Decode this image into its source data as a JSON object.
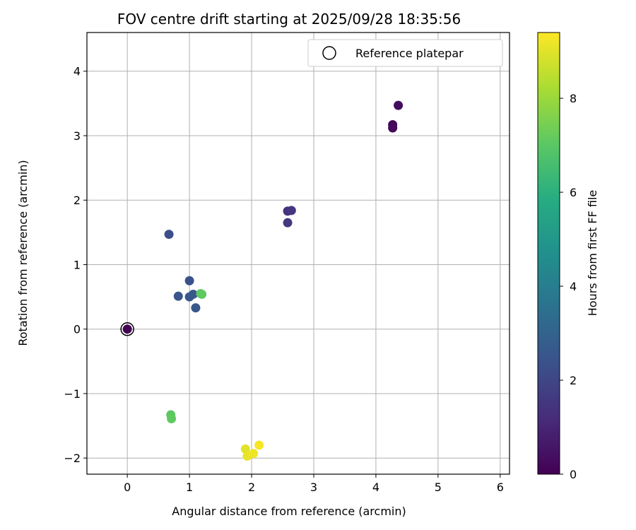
{
  "chart_data": {
    "type": "scatter",
    "title": "FOV centre drift starting at 2025/09/28 18:35:56",
    "xlabel": "Angular distance from reference (arcmin)",
    "ylabel": "Rotation from reference (arcmin)",
    "xlim": [
      -0.65,
      6.15
    ],
    "ylim": [
      -2.25,
      4.6
    ],
    "xticks": [
      0,
      1,
      2,
      3,
      4,
      5,
      6
    ],
    "yticks": [
      -2,
      -1,
      0,
      1,
      2,
      3,
      4
    ],
    "xtick_labels": [
      "0",
      "1",
      "2",
      "3",
      "4",
      "5",
      "6"
    ],
    "ytick_labels": [
      "−2",
      "−1",
      "0",
      "1",
      "2",
      "3",
      "4"
    ],
    "grid": true,
    "legend": {
      "position": "top-right",
      "entries": [
        "Reference platepar"
      ]
    },
    "colorbar": {
      "label": "Hours from first FF file",
      "range": [
        0,
        9.4
      ],
      "ticks": [
        0,
        2,
        4,
        6,
        8
      ],
      "tick_labels": [
        "0",
        "2",
        "4",
        "6",
        "8"
      ],
      "colormap": "viridis"
    },
    "reference_point": {
      "x": 0,
      "y": 0,
      "label": "Reference platepar"
    },
    "points": [
      {
        "x": 0.0,
        "y": 0.0,
        "hours": 0.0
      },
      {
        "x": 4.27,
        "y": 3.17,
        "hours": 0.1
      },
      {
        "x": 4.27,
        "y": 3.12,
        "hours": 0.2
      },
      {
        "x": 4.36,
        "y": 3.47,
        "hours": 0.3
      },
      {
        "x": 2.58,
        "y": 1.83,
        "hours": 1.4
      },
      {
        "x": 2.64,
        "y": 1.84,
        "hours": 1.5
      },
      {
        "x": 2.58,
        "y": 1.65,
        "hours": 1.6
      },
      {
        "x": 0.67,
        "y": 1.47,
        "hours": 2.3
      },
      {
        "x": 1.0,
        "y": 0.75,
        "hours": 2.4
      },
      {
        "x": 0.82,
        "y": 0.51,
        "hours": 2.5
      },
      {
        "x": 1.0,
        "y": 0.5,
        "hours": 2.5
      },
      {
        "x": 1.06,
        "y": 0.54,
        "hours": 2.6
      },
      {
        "x": 1.1,
        "y": 0.33,
        "hours": 2.6
      },
      {
        "x": 1.18,
        "y": 0.55,
        "hours": 7.0
      },
      {
        "x": 1.2,
        "y": 0.54,
        "hours": 7.1
      },
      {
        "x": 0.7,
        "y": -1.33,
        "hours": 7.0
      },
      {
        "x": 0.71,
        "y": -1.39,
        "hours": 7.1
      },
      {
        "x": 1.9,
        "y": -1.86,
        "hours": 9.0
      },
      {
        "x": 1.93,
        "y": -1.97,
        "hours": 9.1
      },
      {
        "x": 2.03,
        "y": -1.93,
        "hours": 9.2
      },
      {
        "x": 2.12,
        "y": -1.8,
        "hours": 9.3
      }
    ]
  }
}
